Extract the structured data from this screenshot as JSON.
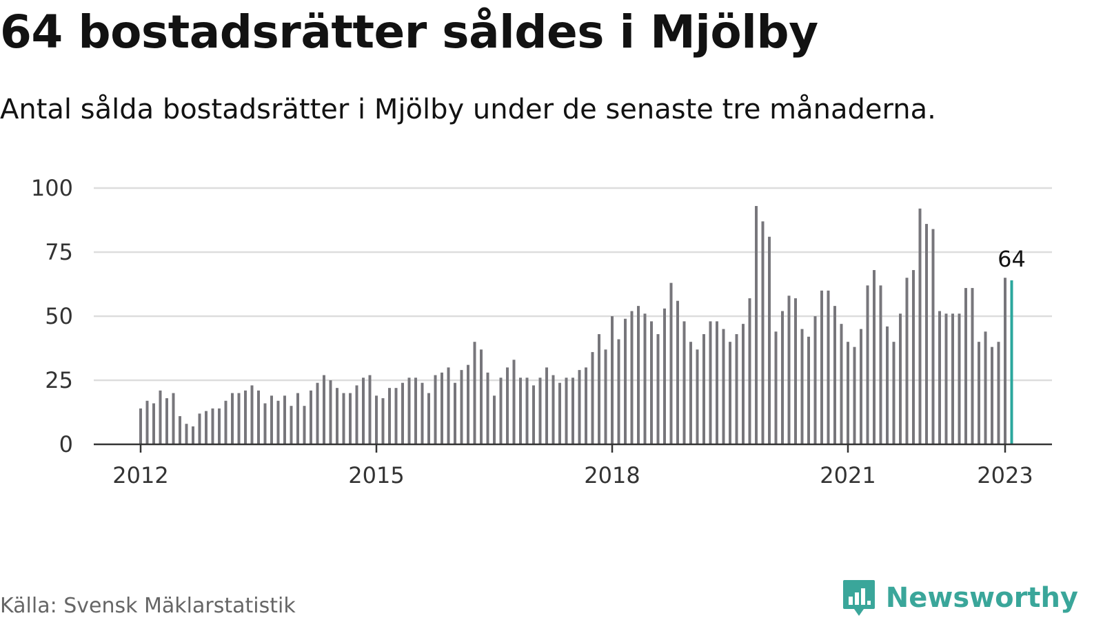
{
  "header": {
    "title": "64 bostadsrätter såldes i Mjölby",
    "subtitle": "Antal sålda bostadsrätter i Mjölby under de senaste tre månaderna."
  },
  "footer": {
    "source": "Källa: Svensk Mäklarstatistik",
    "brand": "Newsworthy"
  },
  "colors": {
    "bar": "#77767b",
    "highlight": "#2ba79d",
    "grid": "#dddddd",
    "axis": "#333333",
    "brand": "#3aa69a"
  },
  "icons": {
    "brand_logo": "bar-chart-speech-bubble-icon"
  },
  "chart_data": {
    "type": "bar",
    "title": "64 bostadsrätter såldes i Mjölby",
    "subtitle": "Antal sålda bostadsrätter i Mjölby under de senaste tre månaderna.",
    "xlabel": "",
    "ylabel": "",
    "x_start": "2012-01",
    "x_step": "month",
    "values": [
      14,
      17,
      16,
      21,
      18,
      20,
      11,
      8,
      7,
      12,
      13,
      14,
      14,
      17,
      20,
      20,
      21,
      23,
      21,
      16,
      19,
      17,
      19,
      15,
      20,
      15,
      21,
      24,
      27,
      25,
      22,
      20,
      20,
      23,
      26,
      27,
      19,
      18,
      22,
      22,
      24,
      26,
      26,
      24,
      20,
      27,
      28,
      30,
      24,
      29,
      31,
      40,
      37,
      28,
      19,
      26,
      30,
      33,
      26,
      26,
      23,
      26,
      30,
      27,
      24,
      26,
      26,
      29,
      30,
      36,
      43,
      37,
      50,
      41,
      49,
      52,
      54,
      51,
      48,
      43,
      53,
      63,
      56,
      48,
      40,
      37,
      43,
      48,
      48,
      45,
      40,
      43,
      47,
      57,
      93,
      87,
      81,
      44,
      52,
      58,
      57,
      45,
      42,
      50,
      60,
      60,
      54,
      47,
      40,
      38,
      45,
      62,
      68,
      62,
      46,
      40,
      51,
      65,
      68,
      92,
      86,
      84,
      52,
      51,
      51,
      51,
      61,
      61,
      40,
      44,
      38,
      40,
      65,
      64
    ],
    "x_ticks": [
      "2012",
      "2015",
      "2018",
      "2021",
      "2023"
    ],
    "y_ticks": [
      0,
      25,
      50,
      75,
      100
    ],
    "ylim": [
      0,
      100
    ],
    "highlight_last": true,
    "last_value_label": "64",
    "grid": true,
    "legend": "none"
  }
}
